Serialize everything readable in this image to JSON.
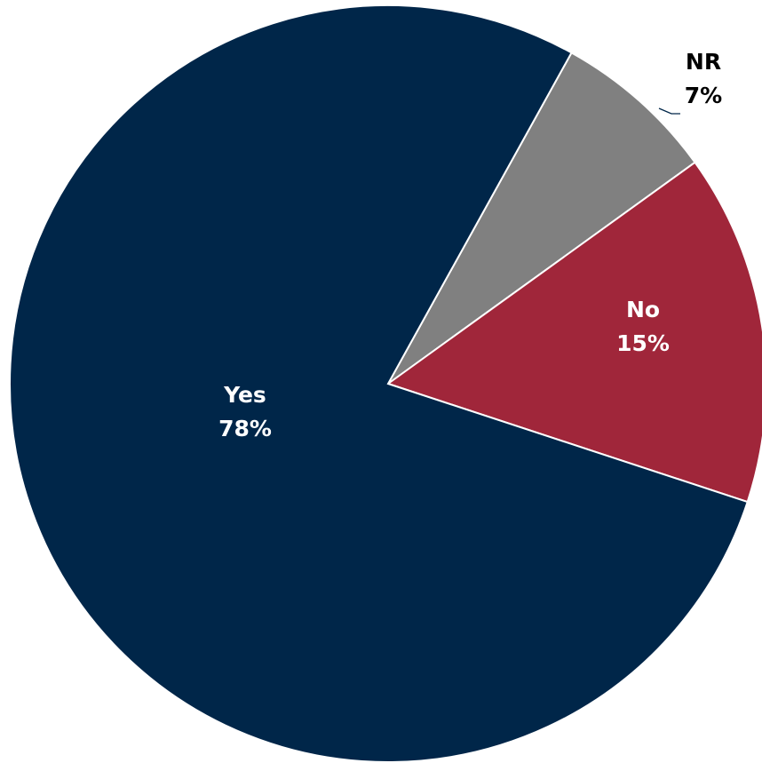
{
  "chart_data": {
    "type": "pie",
    "title": "",
    "slices": [
      {
        "label": "NR",
        "value": 7,
        "value_label": "7%",
        "color": "#808080",
        "label_color": "#000000",
        "label_position": "outside"
      },
      {
        "label": "No",
        "value": 15,
        "value_label": "15%",
        "color": "#A0263A",
        "label_color": "#ffffff",
        "label_position": "inside"
      },
      {
        "label": "Yes",
        "value": 78,
        "value_label": "78%",
        "color": "#002649",
        "label_color": "#ffffff",
        "label_position": "inside"
      }
    ],
    "start_angle_deg": 29,
    "direction": "clockwise",
    "legend": "none"
  }
}
